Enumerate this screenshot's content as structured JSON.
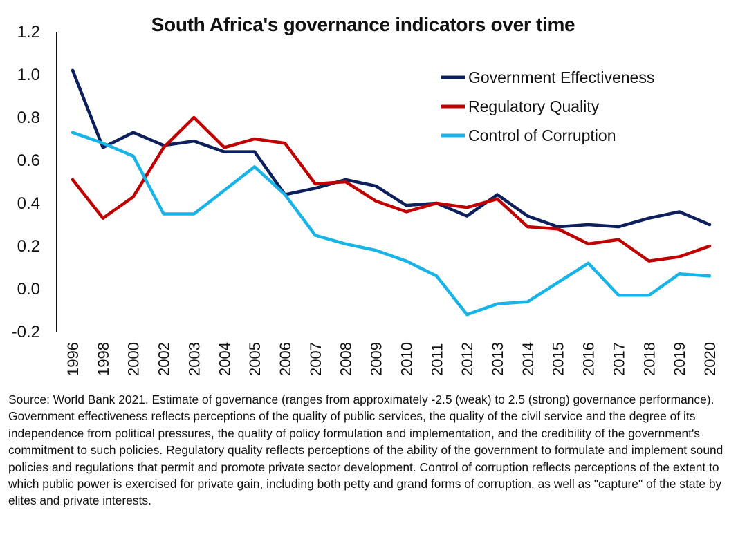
{
  "chart_data": {
    "type": "line",
    "title": "South Africa's governance indicators over time",
    "xlabel": "",
    "ylabel": "",
    "categories": [
      "1996",
      "1998",
      "2000",
      "2002",
      "2003",
      "2004",
      "2005",
      "2006",
      "2007",
      "2008",
      "2009",
      "2010",
      "2011",
      "2012",
      "2013",
      "2014",
      "2015",
      "2016",
      "2017",
      "2018",
      "2019",
      "2020"
    ],
    "ylim": [
      -0.2,
      1.2
    ],
    "yticks": [
      "1.2",
      "1.0",
      "0.8",
      "0.6",
      "0.4",
      "0.2",
      "0.0",
      "-0.2"
    ],
    "grid": false,
    "legend_position": "top-right",
    "series": [
      {
        "name": "Government Effectiveness",
        "color": "#0d1f5c",
        "values": [
          1.02,
          0.66,
          0.73,
          0.67,
          0.69,
          0.64,
          0.64,
          0.44,
          0.47,
          0.51,
          0.48,
          0.39,
          0.4,
          0.34,
          0.44,
          0.34,
          0.29,
          0.3,
          0.29,
          0.33,
          0.36,
          0.3
        ]
      },
      {
        "name": "Regulatory Quality",
        "color": "#c00000",
        "values": [
          0.51,
          0.33,
          0.43,
          0.66,
          0.8,
          0.66,
          0.7,
          0.68,
          0.49,
          0.5,
          0.41,
          0.36,
          0.4,
          0.38,
          0.42,
          0.29,
          0.28,
          0.21,
          0.23,
          0.13,
          0.15,
          0.2
        ]
      },
      {
        "name": "Control of Corruption",
        "color": "#18b4e8",
        "values": [
          0.73,
          0.68,
          0.62,
          0.35,
          0.35,
          0.46,
          0.57,
          0.44,
          0.25,
          0.21,
          0.18,
          0.13,
          0.06,
          -0.12,
          -0.07,
          -0.06,
          0.03,
          0.12,
          -0.03,
          -0.03,
          0.07,
          0.06
        ]
      }
    ]
  },
  "source_note": "Source: World Bank 2021. Estimate of governance (ranges from approximately -2.5 (weak) to 2.5 (strong) governance performance). Government effectiveness reflects perceptions of the quality of public services, the quality of the civil service and the degree of its independence from political pressures, the quality of policy formulation and implementation, and the credibility of the government's commitment to such policies. Regulatory quality reflects perceptions of the ability of the government to formulate and implement sound policies and regulations that permit and promote private sector development. Control of corruption reflects perceptions of the extent to which public power is exercised for private gain, including both petty and grand forms of corruption, as well as \"capture\" of the state by elites and private interests."
}
